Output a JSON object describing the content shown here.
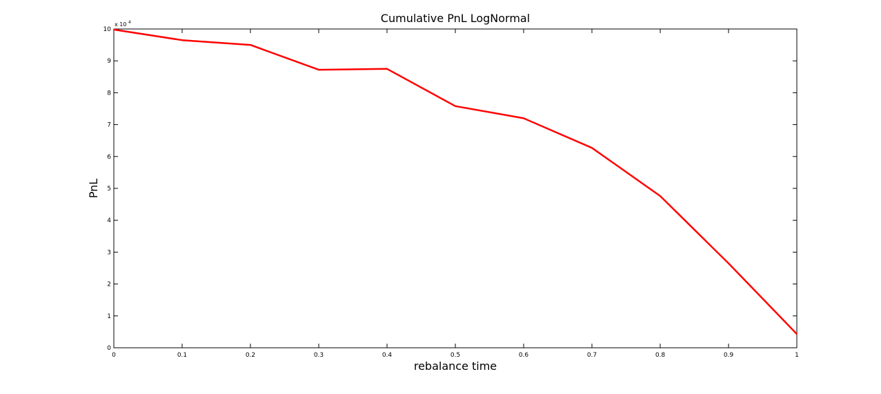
{
  "chart_data": {
    "type": "line",
    "title": "Cumulative PnL LogNormal",
    "xlabel": "rebalance time",
    "ylabel": "PnL",
    "y_multiplier": {
      "base": "x 10",
      "exponent": "4"
    },
    "xlim": [
      0,
      1
    ],
    "ylim": [
      0,
      10
    ],
    "x_ticks": [
      0,
      0.1,
      0.2,
      0.3,
      0.4,
      0.5,
      0.6,
      0.7,
      0.8,
      0.9,
      1
    ],
    "x_tick_labels": [
      "0",
      "0.1",
      "0.2",
      "0.3",
      "0.4",
      "0.5",
      "0.6",
      "0.7",
      "0.8",
      "0.9",
      "1"
    ],
    "y_ticks": [
      0,
      1,
      2,
      3,
      4,
      5,
      6,
      7,
      8,
      9,
      10
    ],
    "y_tick_labels": [
      "0",
      "1",
      "2",
      "3",
      "4",
      "5",
      "6",
      "7",
      "8",
      "9",
      "10"
    ],
    "grid": false,
    "series": [
      {
        "color": "#ff0000",
        "x": [
          0,
          0.1,
          0.2,
          0.3,
          0.4,
          0.5,
          0.6,
          0.7,
          0.8,
          0.9,
          1
        ],
        "y": [
          9.98,
          9.65,
          9.5,
          8.72,
          8.75,
          7.58,
          7.2,
          6.27,
          4.76,
          2.65,
          0.43
        ]
      }
    ]
  }
}
